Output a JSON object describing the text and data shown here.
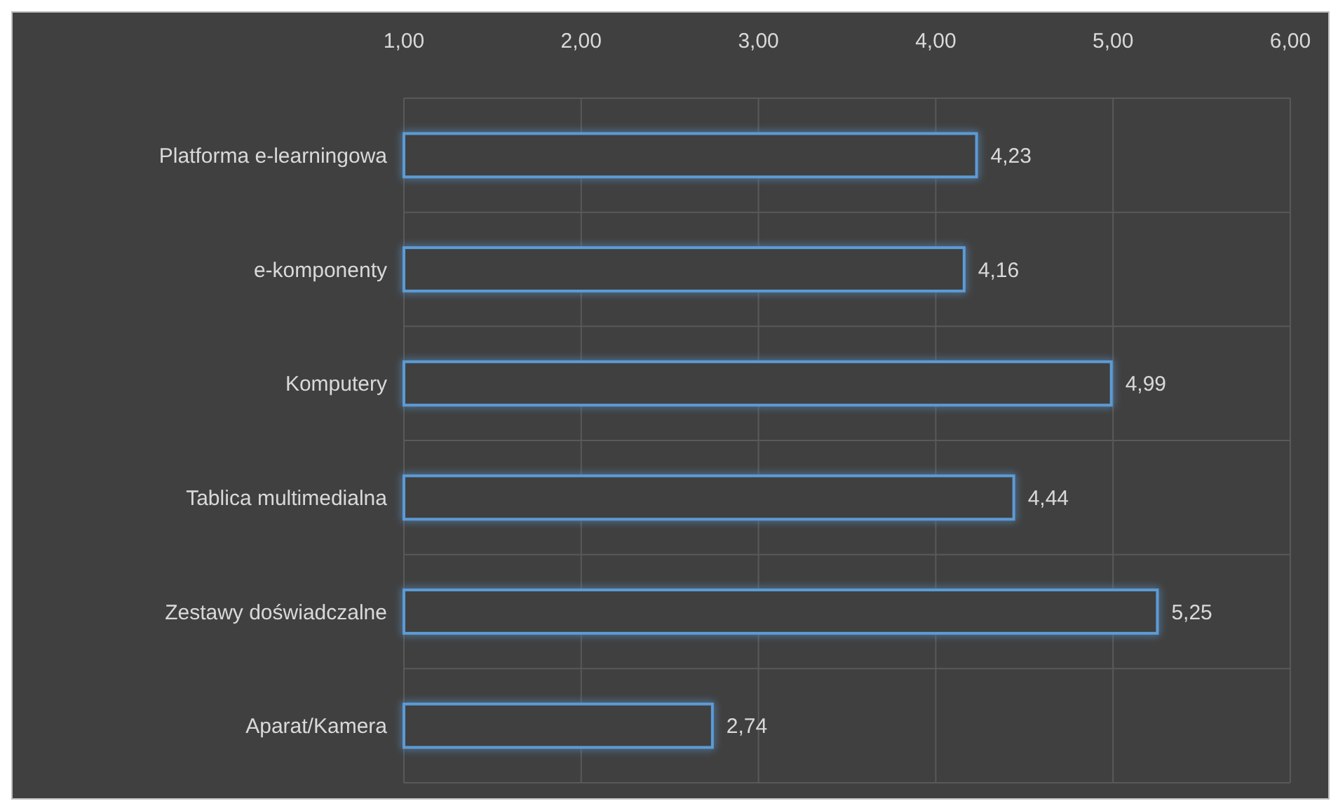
{
  "chart_data": {
    "type": "bar",
    "orientation": "horizontal",
    "categories": [
      "Platforma e-learningowa",
      "e-komponenty",
      "Komputery",
      "Tablica multimedialna",
      "Zestawy doświadczalne",
      "Aparat/Kamera"
    ],
    "values": [
      4.23,
      4.16,
      4.99,
      4.44,
      5.25,
      2.74
    ],
    "value_labels": [
      "4,23",
      "4,16",
      "4,99",
      "4,44",
      "5,25",
      "2,74"
    ],
    "color": "#5b9bd5",
    "xlim": [
      1,
      6
    ],
    "xticks": [
      {
        "value": 1,
        "label": "1,00"
      },
      {
        "value": 2,
        "label": "2,00"
      },
      {
        "value": 3,
        "label": "3,00"
      },
      {
        "value": 4,
        "label": "4,00"
      },
      {
        "value": 5,
        "label": "5,00"
      },
      {
        "value": 6,
        "label": "6,00"
      }
    ],
    "grid": true
  }
}
